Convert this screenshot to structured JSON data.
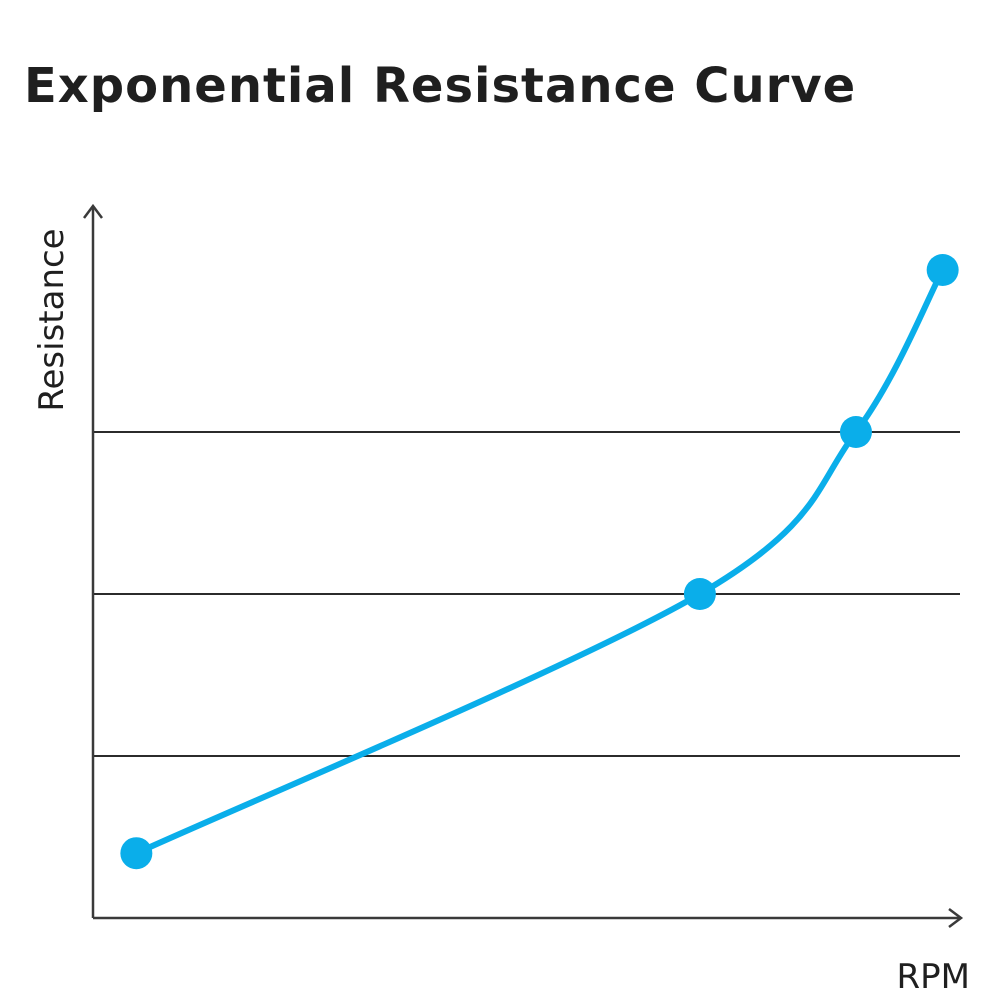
{
  "chart_data": {
    "type": "line",
    "title": "Exponential Resistance Curve",
    "xlabel": "RPM",
    "ylabel": "Resistance",
    "x": [
      0.05,
      0.7,
      0.88,
      0.98
    ],
    "series": [
      {
        "values": [
          0.2,
          1.0,
          1.5,
          2.0
        ]
      }
    ],
    "xlim": [
      0,
      1
    ],
    "ylim": [
      0,
      2.5
    ],
    "yticks": [
      0.5,
      1.0,
      1.5
    ],
    "grid": "horizontal",
    "axis_ticks_labeled": false,
    "colors": {
      "line": "#0aaeea",
      "marker": "#0aaeea",
      "axis": "#3a3a3a",
      "gridline": "#2b2b2b"
    }
  }
}
